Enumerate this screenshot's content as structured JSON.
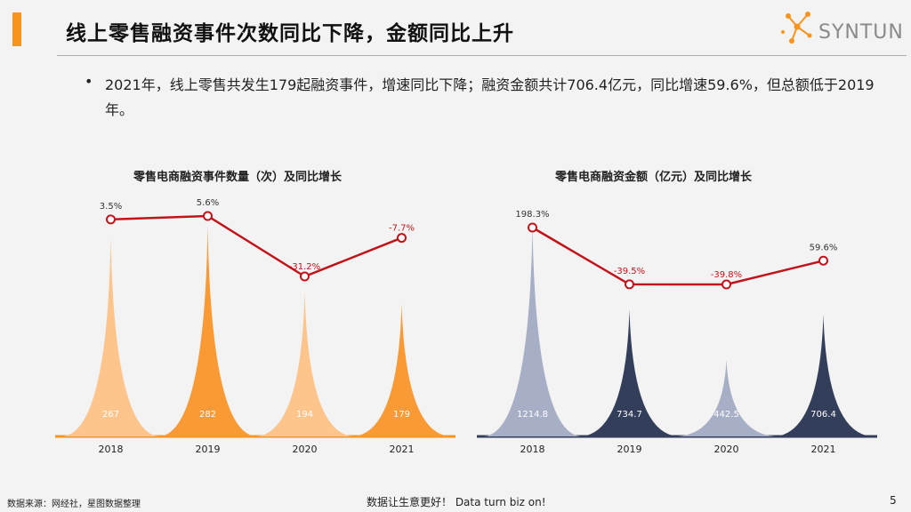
{
  "header": {
    "title": "线上零售融资事件次数同比下降，金额同比上升",
    "logo_text": "SYNTUN",
    "accent_color": "#f7941d"
  },
  "bullet": {
    "symbol": "•",
    "text": "2021年，线上零售共发生179起融资事件，增速同比下降；融资金额共计706.4亿元，同比增速59.6%，但总额低于2019年。"
  },
  "chart_data": [
    {
      "type": "bar",
      "title": "零售电商融资事件数量（次）及同比增长",
      "categories": [
        "2018",
        "2019",
        "2020",
        "2021"
      ],
      "series": [
        {
          "type": "bar",
          "values": [
            267,
            282,
            194,
            179
          ],
          "labels": [
            "267",
            "282",
            "194",
            "179"
          ],
          "colors": [
            "#fdc48c",
            "#f99a34",
            "#fdc48c",
            "#f99a34"
          ]
        },
        {
          "type": "line",
          "values": [
            3.5,
            5.6,
            -31.2,
            -7.7
          ],
          "labels": [
            "3.5%",
            "5.6%",
            "-31.2%",
            "-7.7%"
          ],
          "color": "#c0141a"
        }
      ]
    },
    {
      "type": "bar",
      "title": "零售电商融资金额（亿元）及同比增长",
      "categories": [
        "2018",
        "2019",
        "2020",
        "2021"
      ],
      "series": [
        {
          "type": "bar",
          "values": [
            1214.8,
            734.7,
            442.5,
            706.4
          ],
          "labels": [
            "1214.8",
            "734.7",
            "442.5",
            "706.4"
          ],
          "colors": [
            "#a7afc7",
            "#333e5b",
            "#a7afc7",
            "#333e5b"
          ]
        },
        {
          "type": "line",
          "values": [
            198.3,
            -39.5,
            -39.8,
            59.6
          ],
          "labels": [
            "198.3%",
            "-39.5%",
            "-39.8%",
            "59.6%"
          ],
          "color": "#c0141a"
        }
      ]
    }
  ],
  "footer": {
    "source": "数据来源：网经社，星图数据整理",
    "slogan": "数据让生意更好！ Data turn biz on!",
    "page": "5"
  }
}
